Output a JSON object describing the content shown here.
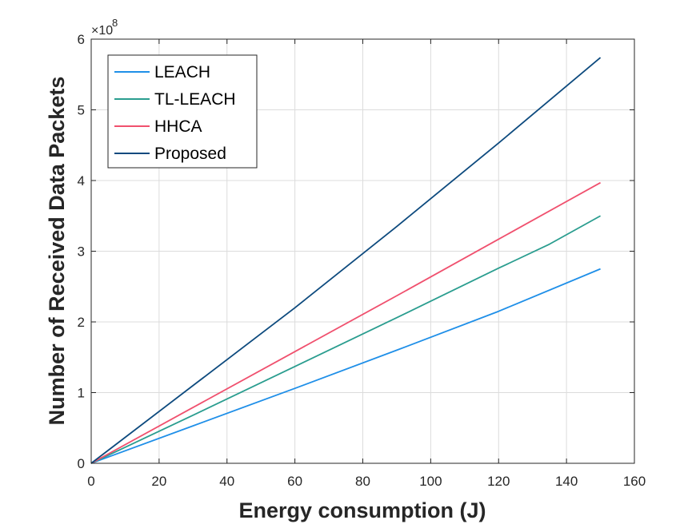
{
  "chart_data": {
    "type": "line",
    "xlabel": "Energy consumption (J)",
    "ylabel": "Number of Received Data Packets",
    "xlim": [
      0,
      160
    ],
    "ylim": [
      0,
      600000000
    ],
    "x_ticks": [
      "0",
      "20",
      "40",
      "60",
      "80",
      "100",
      "120",
      "140",
      "160"
    ],
    "y_ticks": [
      "0",
      "1",
      "2",
      "3",
      "4",
      "5",
      "6"
    ],
    "y_exponent_base": "×10",
    "y_exponent_power": "8",
    "grid": true,
    "legend_position": "top-left",
    "series": [
      {
        "name": "LEACH",
        "color": "#1f8fe8",
        "x": [
          0,
          30,
          60,
          90,
          120,
          150
        ],
        "y": [
          0,
          53000000,
          106000000,
          160000000,
          215000000,
          275000000
        ]
      },
      {
        "name": "TL-LEACH",
        "color": "#2a9d8f",
        "x": [
          0,
          30,
          60,
          90,
          120,
          135,
          150
        ],
        "y": [
          0,
          68000000,
          137000000,
          206000000,
          276000000,
          310000000,
          350000000
        ]
      },
      {
        "name": "HHCA",
        "color": "#f0506e",
        "x": [
          0,
          30,
          60,
          90,
          120,
          150
        ],
        "y": [
          0,
          79000000,
          158000000,
          237000000,
          317000000,
          397000000
        ]
      },
      {
        "name": "Proposed",
        "color": "#0d4a7e",
        "x": [
          0,
          30,
          60,
          90,
          120,
          150
        ],
        "y": [
          0,
          110000000,
          220000000,
          335000000,
          453000000,
          574000000
        ]
      }
    ]
  }
}
